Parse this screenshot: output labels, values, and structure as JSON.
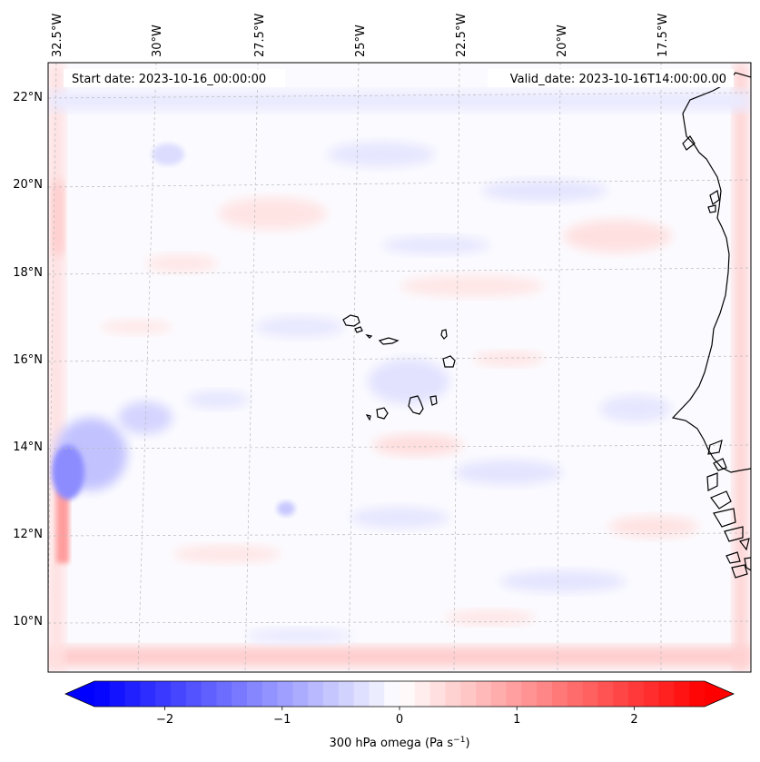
{
  "map": {
    "start_date": "Start date: 2023-10-16_00:00:00",
    "valid_date": "Valid_date: 2023-10-16T14:00:00.00",
    "lon_labels": [
      {
        "text": "32.5°W",
        "lon": -32.5
      },
      {
        "text": "30°W",
        "lon": -30
      },
      {
        "text": "27.5°W",
        "lon": -27.5
      },
      {
        "text": "25°W",
        "lon": -25
      },
      {
        "text": "22.5°W",
        "lon": -22.5
      },
      {
        "text": "20°W",
        "lon": -20
      },
      {
        "text": "17.5°W",
        "lon": -17.5
      }
    ],
    "lat_labels": [
      {
        "text": "22°N",
        "lat": 22
      },
      {
        "text": "20°N",
        "lat": 20
      },
      {
        "text": "18°N",
        "lat": 18
      },
      {
        "text": "16°N",
        "lat": 16
      },
      {
        "text": "14°N",
        "lat": 14
      },
      {
        "text": "12°N",
        "lat": 12
      },
      {
        "text": "10°N",
        "lat": 10
      }
    ],
    "variable": "300 hPa omega",
    "colormap": "bwr",
    "features": [
      "Cape Verde islands",
      "West African coastline"
    ]
  },
  "colorbar": {
    "label_prefix": "300 hPa omega (Pa s",
    "label_exp": "−1",
    "label_suffix": ")",
    "range": [
      -2.6,
      2.6
    ],
    "ticks": [
      {
        "text": "−2",
        "value": -2
      },
      {
        "text": "−1",
        "value": -1
      },
      {
        "text": "0",
        "value": 0
      },
      {
        "text": "1",
        "value": 1
      },
      {
        "text": "2",
        "value": 2
      }
    ],
    "colors": {
      "min": "#0000ff",
      "mid": "#ffffff",
      "max": "#ff0000"
    }
  }
}
